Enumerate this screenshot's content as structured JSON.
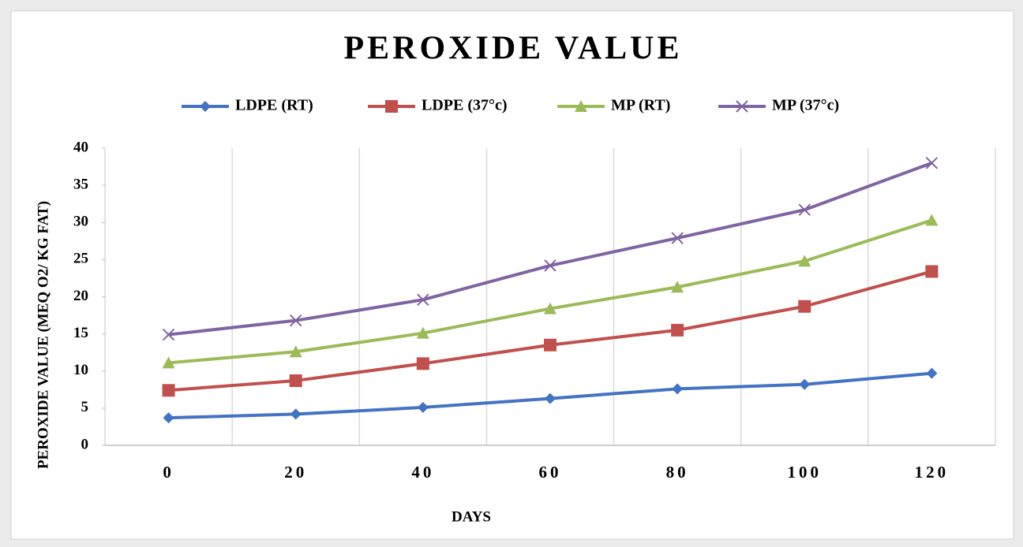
{
  "chart_data": {
    "type": "line",
    "title": "PEROXIDE VALUE",
    "xlabel": "DAYS",
    "ylabel": "PEROXIDE VALUE  (MEQ O2/ KG FAT)",
    "categories": [
      "0",
      "20",
      "40",
      "60",
      "80",
      "100",
      "120"
    ],
    "series": [
      {
        "name": "LDPE (RT)",
        "color": "#4472c4",
        "marker": "diamond",
        "values": [
          3.7,
          4.2,
          5.1,
          6.3,
          7.6,
          8.2,
          9.7
        ]
      },
      {
        "name": "LDPE (37°c)",
        "color": "#c0504d",
        "marker": "square",
        "values": [
          7.4,
          8.7,
          11.0,
          13.5,
          15.5,
          18.7,
          23.4
        ]
      },
      {
        "name": "MP (RT)",
        "color": "#9bbb59",
        "marker": "triangle",
        "values": [
          11.1,
          12.6,
          15.1,
          18.4,
          21.3,
          24.8,
          30.3
        ]
      },
      {
        "name": "MP (37°c)",
        "color": "#8064a2",
        "marker": "x",
        "values": [
          14.9,
          16.8,
          19.6,
          24.2,
          27.9,
          31.7,
          38.0
        ]
      }
    ],
    "ylim": [
      0,
      40
    ],
    "yticks": [
      0,
      5,
      10,
      15,
      20,
      25,
      30,
      35,
      40
    ],
    "grid": true,
    "legend": "top"
  }
}
